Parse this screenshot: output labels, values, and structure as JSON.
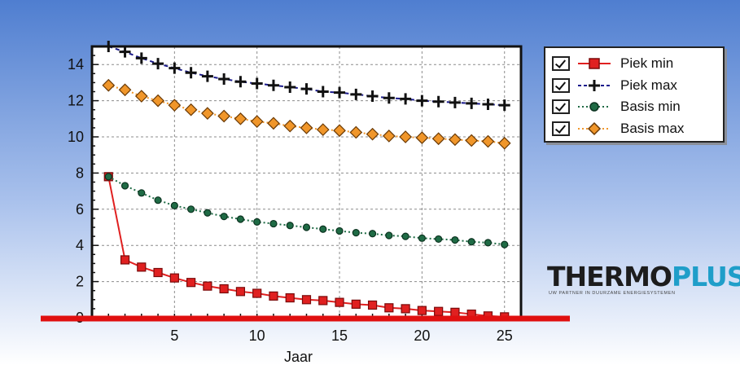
{
  "chart_data": {
    "type": "line",
    "title": "",
    "xlabel": "Jaar",
    "ylabel": "",
    "xlim": [
      0,
      26
    ],
    "ylim": [
      0,
      15
    ],
    "xticks": [
      5,
      10,
      15,
      20,
      25
    ],
    "yticks": [
      0,
      2,
      4,
      6,
      8,
      10,
      12,
      14
    ],
    "grid": true,
    "legend_position": "top-right",
    "x": [
      1,
      2,
      3,
      4,
      5,
      6,
      7,
      8,
      9,
      10,
      11,
      12,
      13,
      14,
      15,
      16,
      17,
      18,
      19,
      20,
      21,
      22,
      23,
      24,
      25
    ],
    "series": [
      {
        "name": "Piek min",
        "color": "#e02020",
        "marker": "square",
        "line": "solid",
        "values": [
          7.8,
          3.2,
          2.8,
          2.5,
          2.2,
          1.95,
          1.75,
          1.6,
          1.45,
          1.35,
          1.2,
          1.1,
          1.0,
          0.95,
          0.85,
          0.75,
          0.7,
          0.55,
          0.5,
          0.4,
          0.35,
          0.3,
          0.2,
          0.1,
          0.05
        ]
      },
      {
        "name": "Piek max",
        "color": "#1a1a8c",
        "marker": "plus",
        "line": "dashed",
        "values": [
          15.0,
          14.7,
          14.35,
          14.05,
          13.8,
          13.55,
          13.35,
          13.2,
          13.05,
          12.95,
          12.85,
          12.75,
          12.65,
          12.5,
          12.45,
          12.35,
          12.25,
          12.15,
          12.1,
          12.0,
          11.95,
          11.9,
          11.85,
          11.8,
          11.75
        ]
      },
      {
        "name": "Basis min",
        "color": "#1f6b45",
        "marker": "circle",
        "line": "dotted",
        "values": [
          7.8,
          7.3,
          6.9,
          6.5,
          6.2,
          6.0,
          5.8,
          5.6,
          5.45,
          5.3,
          5.2,
          5.1,
          5.0,
          4.9,
          4.8,
          4.7,
          4.65,
          4.55,
          4.5,
          4.4,
          4.35,
          4.3,
          4.2,
          4.15,
          4.05
        ]
      },
      {
        "name": "Basis max",
        "color": "#f0962a",
        "marker": "diamond",
        "line": "dotted",
        "values": [
          12.85,
          12.6,
          12.25,
          12.0,
          11.75,
          11.5,
          11.3,
          11.15,
          11.0,
          10.85,
          10.75,
          10.6,
          10.5,
          10.4,
          10.35,
          10.25,
          10.15,
          10.05,
          10.0,
          9.95,
          9.9,
          9.85,
          9.8,
          9.75,
          9.65
        ]
      }
    ]
  },
  "legend": {
    "items": [
      {
        "label": "Piek min"
      },
      {
        "label": "Piek max"
      },
      {
        "label": "Basis min"
      },
      {
        "label": "Basis max"
      }
    ]
  },
  "logo": {
    "thermo": "THERMO",
    "plus": "PLUS",
    "tagline": "UW PARTNER IN DUURZAME ENERGIESYSTEMEN"
  },
  "colors": {
    "background_top": "#4f7ed0",
    "background_bottom": "#ffffff",
    "plot_background": "#ffffff",
    "grid": "#8c8c8c",
    "baseline": "#e01010"
  }
}
